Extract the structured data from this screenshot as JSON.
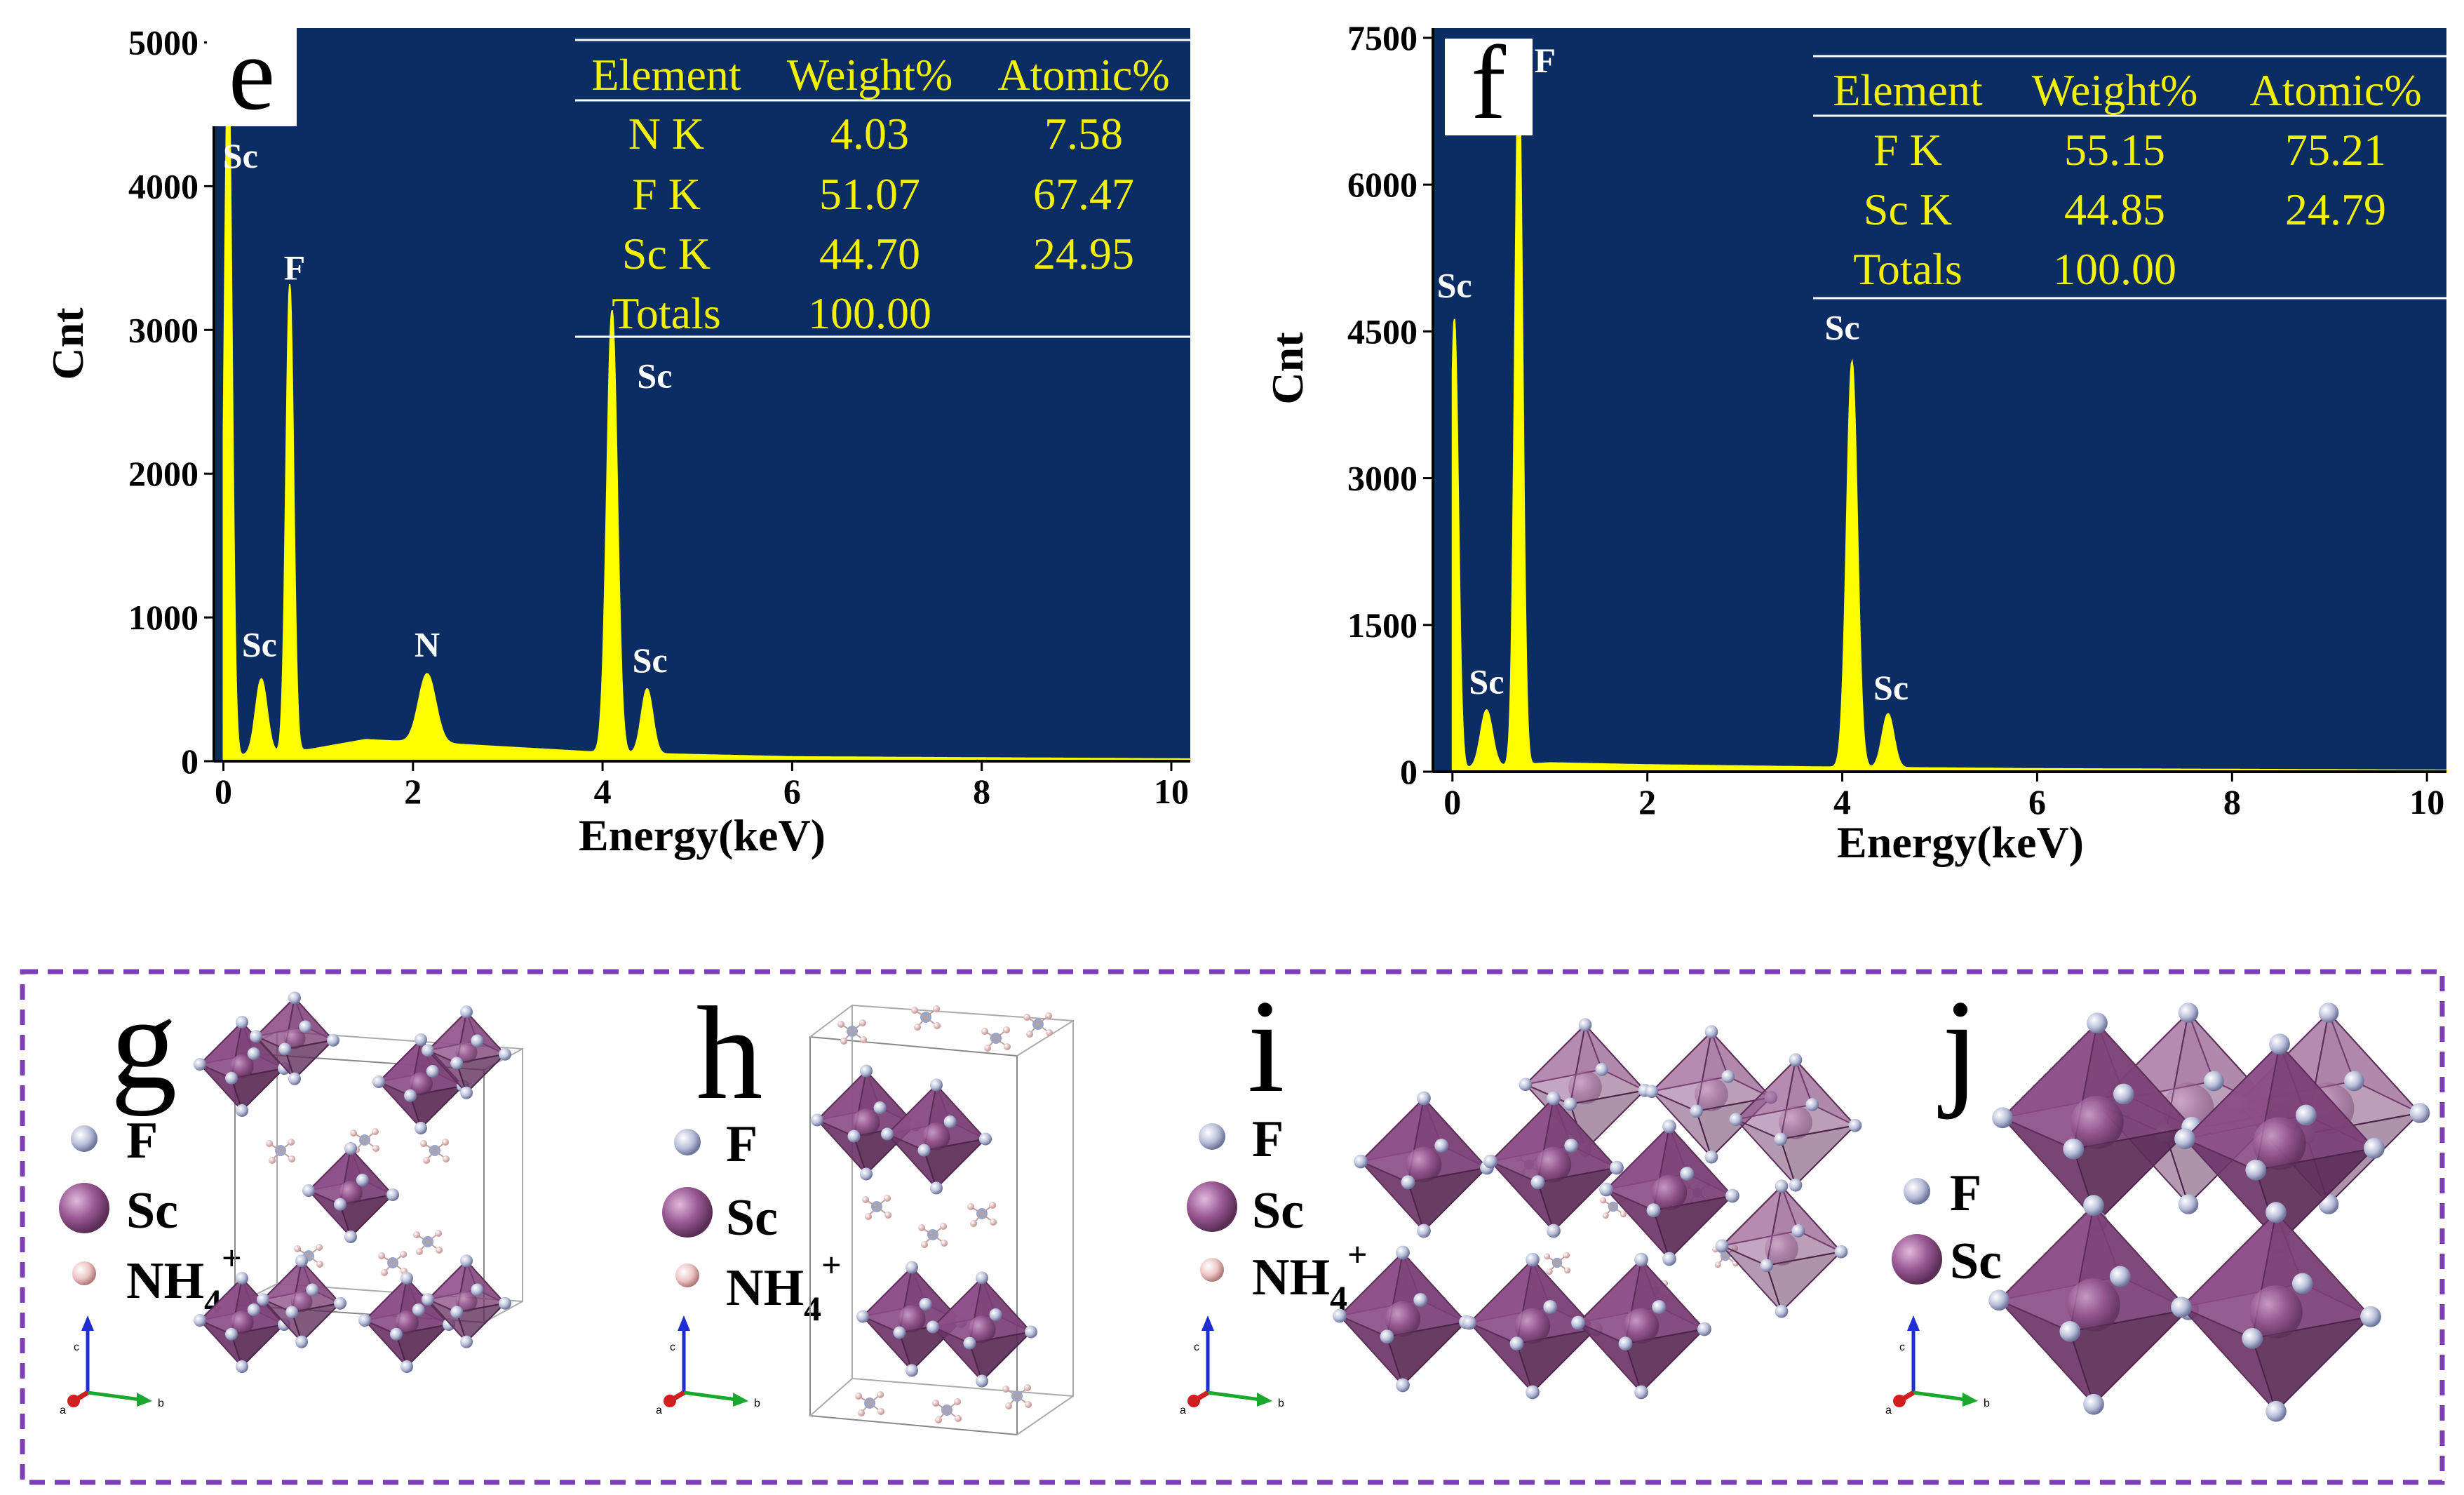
{
  "chart_data": [
    {
      "type": "line",
      "panel": "e",
      "xlabel": "Energy(keV)",
      "ylabel": "Cnt",
      "xlim": [
        -0.1,
        10.2
      ],
      "ylim": [
        0,
        5100
      ],
      "xticks": [
        "0",
        "2",
        "4",
        "6",
        "8",
        "10"
      ],
      "yticks": [
        "0",
        "1000",
        "2000",
        "3000",
        "4000",
        "5000"
      ],
      "xtick_values": [
        0,
        2,
        4,
        6,
        8,
        10
      ],
      "ytick_values": [
        0,
        1000,
        2000,
        3000,
        4000,
        5000
      ],
      "peaks": [
        {
          "x": 0.05,
          "y": 4950,
          "w": 0.04
        },
        {
          "x": 0.4,
          "y": 520,
          "w": 0.06
        },
        {
          "x": 0.7,
          "y": 3250,
          "w": 0.04
        },
        {
          "x": 2.15,
          "y": 480,
          "w": 0.09
        },
        {
          "x": 4.1,
          "y": 3080,
          "w": 0.055
        },
        {
          "x": 4.47,
          "y": 450,
          "w": 0.06
        }
      ],
      "background": [
        [
          0,
          30
        ],
        [
          0.9,
          80
        ],
        [
          1.5,
          150
        ],
        [
          2.4,
          120
        ],
        [
          4,
          60
        ],
        [
          6,
          30
        ],
        [
          10.2,
          15
        ]
      ],
      "annotations": [
        {
          "text": "Sc",
          "x": 0.18,
          "y": 4130
        },
        {
          "text": "F",
          "x": 0.75,
          "y": 3350
        },
        {
          "text": "Sc",
          "x": 0.38,
          "y": 730
        },
        {
          "text": "N",
          "x": 2.15,
          "y": 730
        },
        {
          "text": "Sc",
          "x": 4.55,
          "y": 2600
        },
        {
          "text": "Sc",
          "x": 4.5,
          "y": 620
        }
      ],
      "table": {
        "headers": [
          "Element",
          "Weight%",
          "Atomic%"
        ],
        "rows": [
          [
            "N K",
            "4.03",
            "7.58"
          ],
          [
            "F K",
            "51.07",
            "67.47"
          ],
          [
            "Sc K",
            "44.70",
            "24.95"
          ],
          [
            "Totals",
            "100.00",
            ""
          ]
        ]
      }
    },
    {
      "type": "line",
      "panel": "f",
      "xlabel": "Energy(keV)",
      "ylabel": "Cnt",
      "xlim": [
        -0.2,
        10.2
      ],
      "ylim": [
        0,
        7600
      ],
      "xticks": [
        "0",
        "2",
        "4",
        "6",
        "8",
        "10"
      ],
      "yticks": [
        "0",
        "1500",
        "3000",
        "4500",
        "6000",
        "7500"
      ],
      "xtick_values": [
        0,
        2,
        4,
        6,
        8,
        10
      ],
      "ytick_values": [
        0,
        1500,
        3000,
        4500,
        6000,
        7500
      ],
      "peaks": [
        {
          "x": 0.02,
          "y": 4600,
          "w": 0.04
        },
        {
          "x": 0.35,
          "y": 580,
          "w": 0.06
        },
        {
          "x": 0.68,
          "y": 7200,
          "w": 0.04
        },
        {
          "x": 4.1,
          "y": 4150,
          "w": 0.055
        },
        {
          "x": 4.47,
          "y": 550,
          "w": 0.06
        }
      ],
      "background": [
        [
          0,
          30
        ],
        [
          1,
          90
        ],
        [
          2,
          70
        ],
        [
          4,
          45
        ],
        [
          6,
          30
        ],
        [
          10.2,
          15
        ]
      ],
      "annotations": [
        {
          "text": "Sc",
          "x": 0.02,
          "y": 4850
        },
        {
          "text": "F",
          "x": 0.95,
          "y": 7150
        },
        {
          "text": "Sc",
          "x": 0.35,
          "y": 800
        },
        {
          "text": "Sc",
          "x": 4.0,
          "y": 4420
        },
        {
          "text": "Sc",
          "x": 4.5,
          "y": 740
        }
      ],
      "table": {
        "headers": [
          "Element",
          "Weight%",
          "Atomic%"
        ],
        "rows": [
          [
            "F K",
            "55.15",
            "75.21"
          ],
          [
            "Sc K",
            "44.85",
            "24.79"
          ],
          [
            "Totals",
            "100.00",
            ""
          ]
        ]
      }
    }
  ],
  "panel_letters": {
    "e": "e",
    "f": "f",
    "g": "g",
    "h": "h",
    "i": "i",
    "j": "j"
  },
  "legend_labels": {
    "f": "F",
    "sc": "Sc",
    "nh4": "NH",
    "nh4_sub": "4",
    "nh4_sup": "+"
  },
  "axis_labels": {
    "a": "a",
    "b": "b",
    "c": "c"
  },
  "colors": {
    "plot_bg": "#0b2d63",
    "spectrum": "#ffff00",
    "table_text": "#f2f200",
    "octahedron": "#8a4a84",
    "octahedron_light": "#b77cae",
    "fluorine": "#b9bfd9",
    "nh4": "#e8b8b8",
    "dashed_border": "#7d3fb3"
  }
}
